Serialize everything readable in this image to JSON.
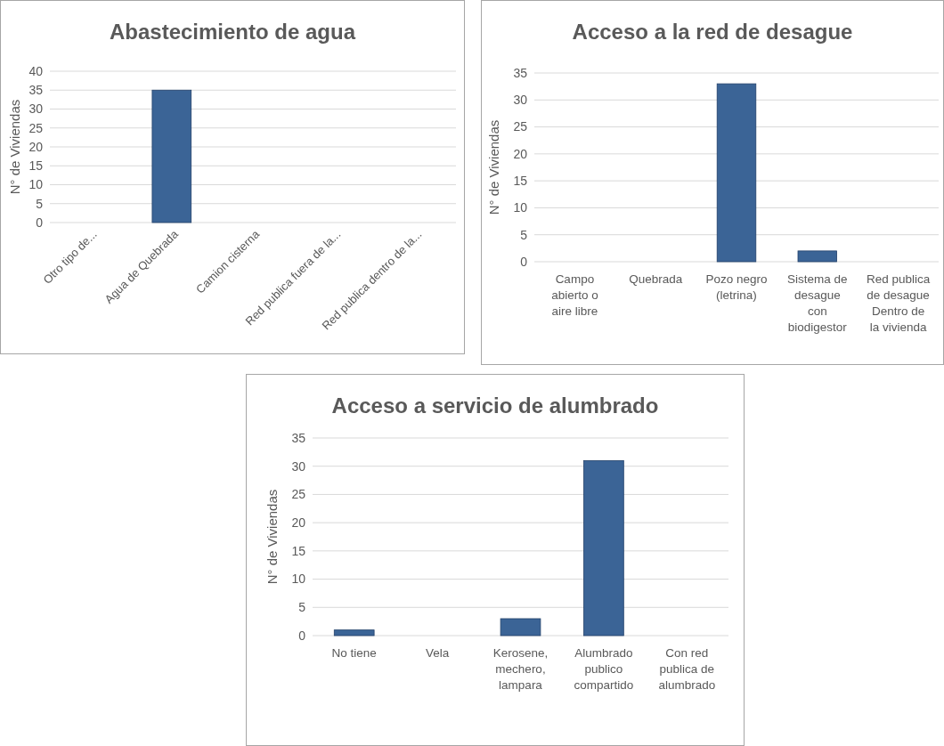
{
  "chart_data": [
    {
      "type": "bar",
      "title": "Abastecimiento de agua",
      "ylabel": "N° de Viviendas",
      "categories": [
        "Otro tipo de...",
        "Agua de Quebrada",
        "Camion cisterna",
        "Red publica fuera de la...",
        "Red publica dentro de la..."
      ],
      "values": [
        0,
        35,
        0,
        0,
        0
      ],
      "color": "#3b6496",
      "ylim": [
        0,
        40
      ],
      "yticks": [
        0,
        5,
        10,
        15,
        20,
        25,
        30,
        35,
        40
      ],
      "grid": "y"
    },
    {
      "type": "bar",
      "title": "Acceso a la red de desague",
      "ylabel": "N° de Viviendas",
      "categories": [
        "Campo\nabierto o\naire libre",
        "Quebrada",
        "Pozo negro\n(letrina)",
        "Sistema de\ndesague\ncon\nbiodigestor",
        "Red publica\nde desague\nDentro de\nla vivienda"
      ],
      "values": [
        0,
        0,
        33,
        2,
        0
      ],
      "color": "#3b6496",
      "ylim": [
        0,
        35
      ],
      "yticks": [
        0,
        5,
        10,
        15,
        20,
        25,
        30,
        35
      ],
      "grid": "y"
    },
    {
      "type": "bar",
      "title": "Acceso a servicio de alumbrado",
      "ylabel": "N° de Viviendas",
      "categories": [
        "No tiene",
        "Vela",
        "Kerosene,\nmechero,\nlampara",
        "Alumbrado\npublico\ncompartido",
        "Con red\npublica de\nalumbrado"
      ],
      "values": [
        1,
        0,
        3,
        31,
        0
      ],
      "color": "#3b6496",
      "ylim": [
        0,
        35
      ],
      "yticks": [
        0,
        5,
        10,
        15,
        20,
        25,
        30,
        35
      ],
      "grid": "y"
    }
  ]
}
